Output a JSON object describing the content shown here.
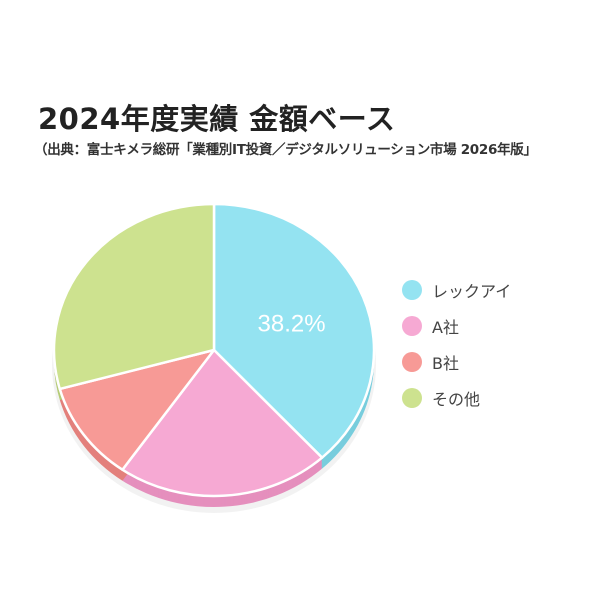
{
  "title": "2024年度実績 金額ベース",
  "subtitle": "（出典：富士キメラ総研「業種別IT投資／デジタルソリューション市場 2026年版」",
  "chart_data": {
    "type": "pie",
    "title": "2024年度実績 金額ベース",
    "subtitle": "（出典：富士キメラ総研「業種別IT投資／デジタルソリューション市場 2026年版」",
    "categories": [
      "レックアイ",
      "A社",
      "B社",
      "その他"
    ],
    "values": [
      38.2,
      21.5,
      11.0,
      29.3
    ],
    "data_labels": [
      "38.2%",
      "",
      "",
      ""
    ],
    "colors": [
      "#94e3f1",
      "#f6a9d3",
      "#f79a96",
      "#cde28f"
    ],
    "side_colors": [
      "#78cddd",
      "#e58fbd",
      "#e3807c",
      "#b5cb77"
    ],
    "legend_position": "right",
    "start_angle": "12 o'clock, clockwise"
  }
}
